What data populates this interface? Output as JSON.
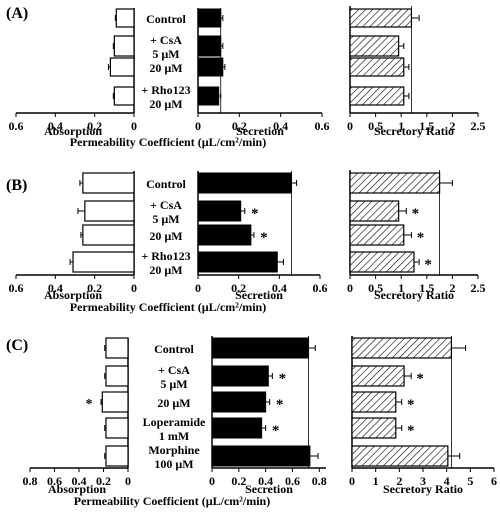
{
  "chart_data": [
    {
      "type": "bar",
      "panel_label": "(A)",
      "orientation": "horizontal",
      "categories": [
        "Control",
        "+ CsA",
        "20 µM",
        "+ Rho123"
      ],
      "category_sublabels": [
        "",
        "5 µM",
        "",
        "20 µM"
      ],
      "absorption": {
        "label": "Absorption",
        "values": [
          0.09,
          0.1,
          0.12,
          0.1
        ],
        "errors": [
          0.005,
          0.005,
          0.01,
          0.005
        ],
        "ticks": [
          "0.6",
          "0.4",
          "0.2",
          "0"
        ],
        "xlim": [
          0,
          0.6
        ]
      },
      "secretion": {
        "label": "Secretion",
        "values": [
          0.11,
          0.11,
          0.12,
          0.1
        ],
        "errors": [
          0.01,
          0.01,
          0.01,
          0.01
        ],
        "ticks": [
          "0",
          "0.2",
          "0.4",
          "0.6"
        ],
        "xlim": [
          0,
          0.6
        ]
      },
      "ratio": {
        "label": "Secretory Ratio",
        "values": [
          1.2,
          0.95,
          1.05,
          1.05
        ],
        "errors": [
          0.15,
          0.1,
          0.1,
          0.1
        ],
        "ticks": [
          "0",
          "0.5",
          "1",
          "1.5",
          "2",
          "2.5"
        ],
        "xlim": [
          0,
          2.5
        ],
        "sig": [
          "",
          "",
          "",
          ""
        ]
      },
      "secretion_sig": [
        "",
        "",
        "",
        ""
      ],
      "absorption_sig": [
        "",
        "",
        "",
        ""
      ],
      "xlabel": "Permeability Coefficient (µL/cm²/min)"
    },
    {
      "type": "bar",
      "panel_label": "(B)",
      "orientation": "horizontal",
      "categories": [
        "Control",
        "+ CsA",
        "20 µM",
        "+ Rho123"
      ],
      "category_sublabels": [
        "",
        "5 µM",
        "",
        "20 µM"
      ],
      "absorption": {
        "label": "Absorption",
        "values": [
          0.26,
          0.25,
          0.26,
          0.31
        ],
        "errors": [
          0.015,
          0.035,
          0.01,
          0.015
        ],
        "ticks": [
          "0.6",
          "0.4",
          "0.2",
          "0"
        ],
        "xlim": [
          0,
          0.6
        ]
      },
      "secretion": {
        "label": "Secretion",
        "values": [
          0.46,
          0.21,
          0.26,
          0.39
        ],
        "errors": [
          0.025,
          0.02,
          0.015,
          0.03
        ],
        "ticks": [
          "0",
          "0.2",
          "0.4",
          "0.6"
        ],
        "xlim": [
          0,
          0.6
        ]
      },
      "ratio": {
        "label": "Secretory Ratio",
        "values": [
          1.75,
          0.95,
          1.05,
          1.25
        ],
        "errors": [
          0.25,
          0.15,
          0.15,
          0.1
        ],
        "ticks": [
          "0",
          "0.5",
          "1",
          "1.5",
          "2",
          "2.5"
        ],
        "xlim": [
          0,
          2.5
        ],
        "sig": [
          "",
          "*",
          "*",
          "*"
        ]
      },
      "secretion_sig": [
        "",
        "*",
        "*",
        ""
      ],
      "absorption_sig": [
        "",
        "",
        "",
        ""
      ],
      "xlabel": "Permeability Coefficient (µL/cm²/min)"
    },
    {
      "type": "bar",
      "panel_label": "(C)",
      "orientation": "horizontal",
      "categories": [
        "Control",
        "+ CsA",
        "20 µM",
        "Loperamide",
        "Morphine"
      ],
      "category_sublabels": [
        "",
        "5 µM",
        "",
        "1 mM",
        "100 µM"
      ],
      "absorption": {
        "label": "Absorption",
        "values": [
          0.18,
          0.18,
          0.21,
          0.18,
          0.18
        ],
        "errors": [
          0.01,
          0.01,
          0.01,
          0.01,
          0.01
        ],
        "ticks": [
          "0.8",
          "0.6",
          "0.4",
          "0.2",
          "0"
        ],
        "xlim": [
          0,
          0.8
        ]
      },
      "secretion": {
        "label": "Secretion",
        "values": [
          0.72,
          0.42,
          0.4,
          0.37,
          0.73
        ],
        "errors": [
          0.05,
          0.03,
          0.03,
          0.03,
          0.06
        ],
        "ticks": [
          "0",
          "0.2",
          "0.4",
          "0.6",
          "0.8"
        ],
        "xlim": [
          0,
          0.85
        ]
      },
      "ratio": {
        "label": "Secretory Ratio",
        "values": [
          4.2,
          2.2,
          1.85,
          1.85,
          4.05
        ],
        "errors": [
          0.6,
          0.3,
          0.25,
          0.25,
          0.5
        ],
        "ticks": [
          "0",
          "1",
          "2",
          "3",
          "4",
          "5",
          "6"
        ],
        "xlim": [
          0,
          6
        ],
        "sig": [
          "",
          "*",
          "*",
          "*",
          ""
        ]
      },
      "secretion_sig": [
        "",
        "*",
        "*",
        "*",
        ""
      ],
      "absorption_sig": [
        "",
        "",
        "*",
        "",
        ""
      ],
      "xlabel": "Permeability Coefficient (µL/cm²/min)"
    }
  ]
}
